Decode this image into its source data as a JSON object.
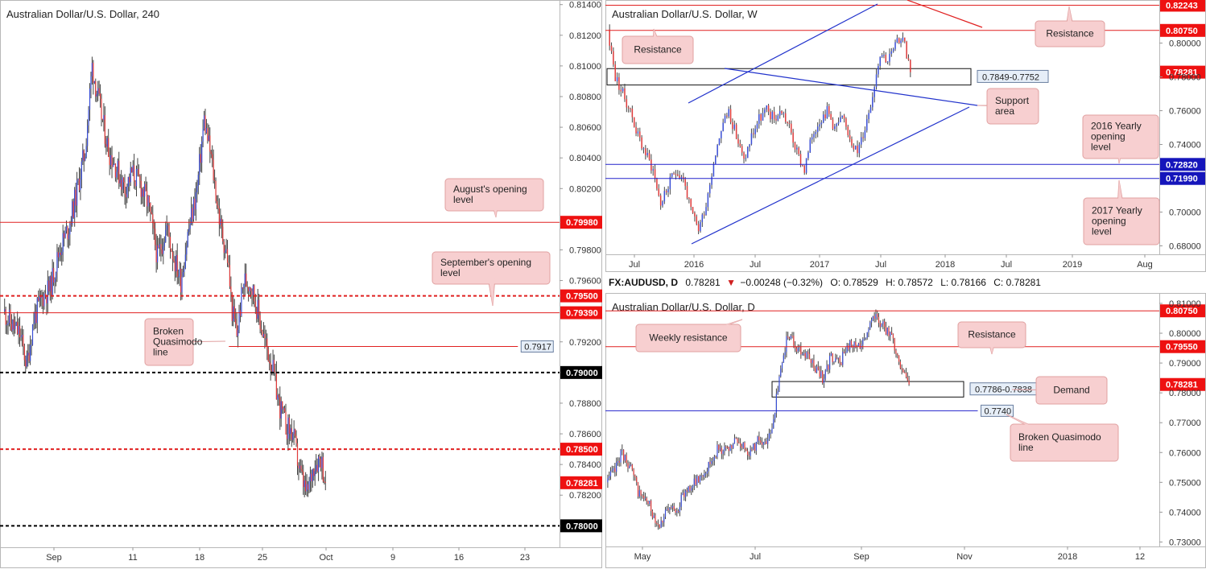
{
  "colors": {
    "bull": "#3a4fd6",
    "bear": "#e03b3b",
    "wick": "#444444",
    "red_level": "#e02020",
    "blue_level": "#2222cc",
    "badge_red": "#ee1111",
    "badge_black": "#000000",
    "badge_blue": "#1515bb",
    "note_fill": "#f7cfd0",
    "note_stroke": "#e0a0a0",
    "zone_label_fill": "#e6eef8",
    "zone_label_stroke": "#6a7fa0"
  },
  "info_bar": {
    "symbol": "FX:AUDUSD, D",
    "last": "0.78281",
    "change": "−0.00248 (−0.32%)",
    "open": "O: 0.78529",
    "high": "H: 0.78572",
    "low": "L: 0.78166",
    "close": "C: 0.78281"
  },
  "chart_data": [
    {
      "id": "h4",
      "type": "candlestick",
      "title": "Australian Dollar/U.S. Dollar, 240",
      "x_ticks": [
        "Sep",
        "11",
        "18",
        "25",
        "Oct",
        "9",
        "16",
        "23"
      ],
      "y_ticks": [
        "0.81400",
        "0.81200",
        "0.81000",
        "0.80800",
        "0.80600",
        "0.80400",
        "0.80200",
        "0.79800",
        "0.79600",
        "0.79200",
        "0.78800",
        "0.78600",
        "0.78400",
        "0.78200"
      ],
      "ylim": [
        0.7786,
        0.8143
      ],
      "grid": false,
      "seed": 11,
      "path": [
        [
          0,
          0.794
        ],
        [
          8,
          0.793
        ],
        [
          14,
          0.7925
        ],
        [
          20,
          0.7905
        ],
        [
          26,
          0.7935
        ],
        [
          34,
          0.795
        ],
        [
          40,
          0.7955
        ],
        [
          48,
          0.798
        ],
        [
          56,
          0.7995
        ],
        [
          62,
          0.8015
        ],
        [
          70,
          0.8045
        ],
        [
          76,
          0.81
        ],
        [
          82,
          0.8075
        ],
        [
          90,
          0.8045
        ],
        [
          96,
          0.8035
        ],
        [
          104,
          0.802
        ],
        [
          110,
          0.803
        ],
        [
          116,
          0.8025
        ],
        [
          124,
          0.801
        ],
        [
          132,
          0.7975
        ],
        [
          140,
          0.7995
        ],
        [
          146,
          0.7975
        ],
        [
          152,
          0.796
        ],
        [
          158,
          0.799
        ],
        [
          166,
          0.802
        ],
        [
          172,
          0.8065
        ],
        [
          178,
          0.804
        ],
        [
          186,
          0.7995
        ],
        [
          192,
          0.7975
        ],
        [
          196,
          0.794
        ],
        [
          200,
          0.7925
        ],
        [
          206,
          0.796
        ],
        [
          212,
          0.7958
        ],
        [
          218,
          0.794
        ],
        [
          224,
          0.792
        ],
        [
          230,
          0.7905
        ],
        [
          236,
          0.788
        ],
        [
          242,
          0.7865
        ],
        [
          248,
          0.786
        ],
        [
          254,
          0.7835
        ],
        [
          260,
          0.782
        ],
        [
          266,
          0.784
        ],
        [
          272,
          0.7845
        ],
        [
          276,
          0.7828
        ]
      ],
      "levels": [
        {
          "value": "0.79980",
          "kind": "red",
          "style": "solid",
          "badge": "red"
        },
        {
          "value": "0.79500",
          "kind": "red",
          "style": "dashed",
          "badge": "red"
        },
        {
          "value": "0.79390",
          "kind": "red",
          "style": "solid",
          "badge": "red"
        },
        {
          "value": "0.79000",
          "kind": "black",
          "style": "dashed",
          "badge": "black"
        },
        {
          "value": "0.78500",
          "kind": "red",
          "style": "dashed",
          "badge": "red"
        },
        {
          "value": "0.78281",
          "kind": "none",
          "style": "none",
          "badge": "red"
        },
        {
          "value": "0.78000",
          "kind": "black",
          "style": "dashed",
          "badge": "black"
        },
        {
          "value": "0.7917",
          "kind": "red",
          "style": "solid",
          "badge": "tag",
          "from": 0.38,
          "to": 0.86
        }
      ],
      "notes": [
        {
          "text": "August's opening level",
          "lines": [
            "August's opening",
            "level"
          ]
        },
        {
          "text": "September's opening level",
          "lines": [
            "September's opening",
            "level"
          ]
        },
        {
          "text": "Broken Quasimodo line",
          "lines": [
            "Broken",
            "Quasimodo",
            "line"
          ]
        }
      ]
    },
    {
      "id": "weekly",
      "type": "candlestick",
      "title": "Australian Dollar/U.S. Dollar, W",
      "x_ticks": [
        "Jul",
        "2016",
        "Jul",
        "2017",
        "Jul",
        "2018",
        "Jul",
        "2019",
        "Aug"
      ],
      "y_ticks": [
        "0.80000",
        "0.78000",
        "0.76000",
        "0.74000",
        "0.70000",
        "0.68000"
      ],
      "ylim": [
        0.675,
        0.8255
      ],
      "grid": false,
      "seed": 23,
      "path": [
        [
          0,
          0.808
        ],
        [
          4,
          0.78
        ],
        [
          8,
          0.77
        ],
        [
          12,
          0.76
        ],
        [
          16,
          0.745
        ],
        [
          20,
          0.735
        ],
        [
          24,
          0.725
        ],
        [
          28,
          0.705
        ],
        [
          32,
          0.715
        ],
        [
          36,
          0.725
        ],
        [
          40,
          0.72
        ],
        [
          44,
          0.7
        ],
        [
          48,
          0.69
        ],
        [
          52,
          0.705
        ],
        [
          56,
          0.73
        ],
        [
          60,
          0.75
        ],
        [
          64,
          0.76
        ],
        [
          68,
          0.745
        ],
        [
          72,
          0.73
        ],
        [
          76,
          0.745
        ],
        [
          80,
          0.755
        ],
        [
          84,
          0.76
        ],
        [
          88,
          0.755
        ],
        [
          92,
          0.76
        ],
        [
          96,
          0.75
        ],
        [
          100,
          0.735
        ],
        [
          104,
          0.725
        ],
        [
          108,
          0.745
        ],
        [
          112,
          0.755
        ],
        [
          116,
          0.76
        ],
        [
          120,
          0.75
        ],
        [
          124,
          0.755
        ],
        [
          128,
          0.745
        ],
        [
          132,
          0.735
        ],
        [
          136,
          0.75
        ],
        [
          140,
          0.77
        ],
        [
          144,
          0.795
        ],
        [
          148,
          0.79
        ],
        [
          152,
          0.798
        ],
        [
          156,
          0.805
        ],
        [
          160,
          0.7828
        ]
      ],
      "levels": [
        {
          "value": "0.82243",
          "kind": "red",
          "style": "solid",
          "badge": "red"
        },
        {
          "value": "0.80750",
          "kind": "red",
          "style": "solid",
          "badge": "red"
        },
        {
          "value": "0.78281",
          "kind": "none",
          "style": "none",
          "badge": "red"
        },
        {
          "value": "0.72820",
          "kind": "blue",
          "style": "solid",
          "badge": "blue"
        },
        {
          "value": "0.71990",
          "kind": "blue",
          "style": "solid",
          "badge": "blue"
        }
      ],
      "zone": {
        "label": "0.7849-0.7752",
        "top": 0.7849,
        "bottom": 0.7752
      },
      "notes": [
        {
          "text": "Resistance",
          "lines": [
            "Resistance"
          ]
        },
        {
          "text": "Resistance",
          "lines": [
            "Resistance"
          ]
        },
        {
          "text": "Support area",
          "lines": [
            "Support",
            "area"
          ]
        },
        {
          "text": "2016 Yearly opening level",
          "lines": [
            "2016 Yearly",
            "opening",
            "level"
          ]
        },
        {
          "text": "2017 Yearly opening level",
          "lines": [
            "2017 Yearly",
            "opening",
            "level"
          ]
        }
      ]
    },
    {
      "id": "daily",
      "type": "candlestick",
      "title": "Australian Dollar/U.S. Dollar, D",
      "x_ticks": [
        "May",
        "Jul",
        "Sep",
        "Nov",
        "2018",
        "12"
      ],
      "y_ticks": [
        "0.81000",
        "0.80000",
        "0.79000",
        "0.78000",
        "0.77000",
        "0.76000",
        "0.75000",
        "0.74000",
        "0.73000"
      ],
      "ylim": [
        0.7285,
        0.8135
      ],
      "grid": false,
      "seed": 37,
      "path": [
        [
          0,
          0.75
        ],
        [
          6,
          0.754
        ],
        [
          10,
          0.76
        ],
        [
          16,
          0.756
        ],
        [
          22,
          0.747
        ],
        [
          30,
          0.742
        ],
        [
          36,
          0.736
        ],
        [
          42,
          0.74
        ],
        [
          50,
          0.742
        ],
        [
          56,
          0.748
        ],
        [
          62,
          0.75
        ],
        [
          70,
          0.755
        ],
        [
          78,
          0.762
        ],
        [
          84,
          0.76
        ],
        [
          90,
          0.764
        ],
        [
          96,
          0.762
        ],
        [
          100,
          0.76
        ],
        [
          106,
          0.765
        ],
        [
          110,
          0.762
        ],
        [
          114,
          0.766
        ],
        [
          118,
          0.778
        ],
        [
          122,
          0.79
        ],
        [
          126,
          0.8
        ],
        [
          132,
          0.795
        ],
        [
          140,
          0.792
        ],
        [
          146,
          0.788
        ],
        [
          150,
          0.785
        ],
        [
          156,
          0.792
        ],
        [
          162,
          0.79
        ],
        [
          168,
          0.796
        ],
        [
          174,
          0.795
        ],
        [
          180,
          0.8
        ],
        [
          186,
          0.805
        ],
        [
          192,
          0.803
        ],
        [
          198,
          0.798
        ],
        [
          204,
          0.79
        ],
        [
          210,
          0.7828
        ]
      ],
      "levels": [
        {
          "value": "0.80750",
          "kind": "red",
          "style": "solid",
          "badge": "red"
        },
        {
          "value": "0.79550",
          "kind": "red",
          "style": "solid",
          "badge": "red"
        },
        {
          "value": "0.78281",
          "kind": "none",
          "style": "none",
          "badge": "red"
        },
        {
          "value": "0.7740",
          "kind": "blue",
          "style": "solid",
          "badge": "tag",
          "from": 0.0,
          "to": 0.62
        }
      ],
      "zone": {
        "label": "0.7786-0.7838",
        "top": 0.7838,
        "bottom": 0.7786
      },
      "notes": [
        {
          "text": "Weekly resistance",
          "lines": [
            "Weekly resistance"
          ]
        },
        {
          "text": "Resistance",
          "lines": [
            "Resistance"
          ]
        },
        {
          "text": "Demand",
          "lines": [
            "Demand"
          ]
        },
        {
          "text": "Broken Quasimodo line",
          "lines": [
            "Broken Quasimodo",
            "line"
          ]
        }
      ]
    }
  ]
}
